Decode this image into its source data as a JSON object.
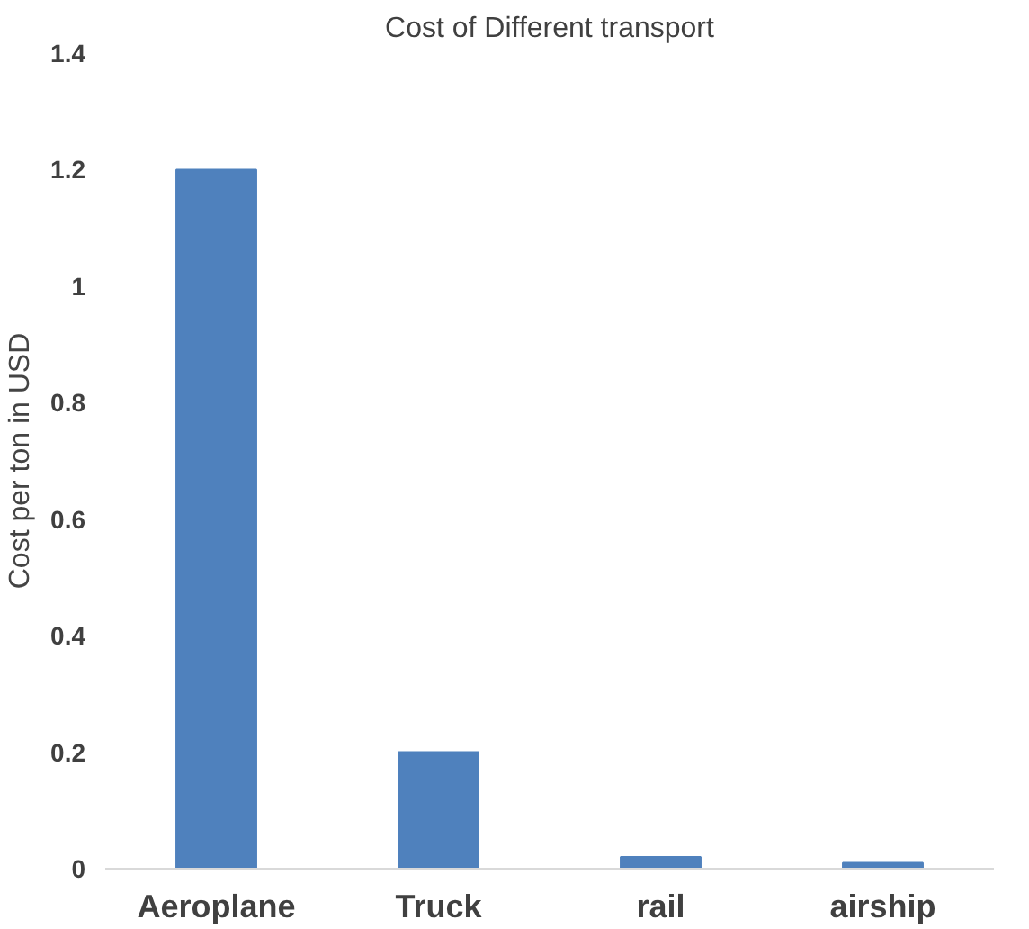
{
  "chart_data": {
    "type": "bar",
    "title": "Cost of Different transport",
    "ylabel": "Cost per ton in USD",
    "categories": [
      "Aeroplane",
      "Truck",
      "rail",
      "airship"
    ],
    "values": [
      1.2,
      0.2,
      0.02,
      0.01
    ],
    "color": "#4f81bd",
    "ylim": [
      0,
      1.4
    ],
    "yticks": [
      0,
      0.2,
      0.4,
      0.6,
      0.8,
      1,
      1.2,
      1.4
    ],
    "grid": false
  }
}
